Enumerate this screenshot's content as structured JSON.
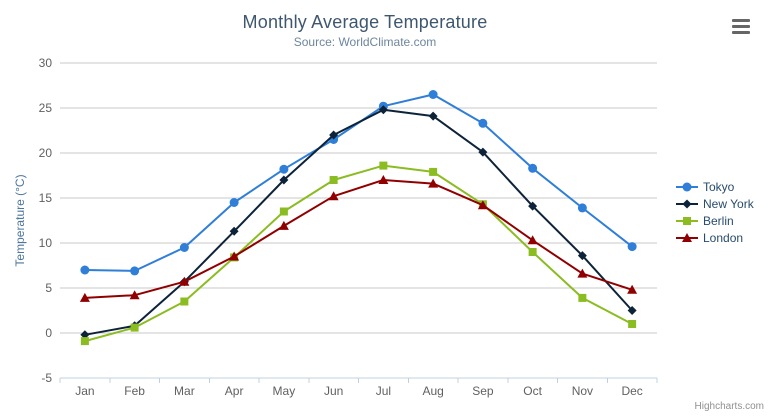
{
  "header": {
    "title": "Monthly Average Temperature",
    "subtitle": "Source: WorldClimate.com"
  },
  "credits": "Highcharts.com",
  "menu_icon": "hamburger-menu-icon",
  "colors": {
    "title": "#3e576f",
    "subtitle": "#6d869f",
    "grid": "#c9c9c9",
    "axis_line": "#c0d0e0",
    "tick_label": "#606060",
    "axis_title": "#4d759e",
    "legend_text": "#274b6d",
    "credits": "#909090",
    "menu": "#666666"
  },
  "chart_data": {
    "type": "line",
    "title": "Monthly Average Temperature",
    "subtitle": "Source: WorldClimate.com",
    "xlabel": "",
    "ylabel": "Temperature (°C)",
    "ylim": [
      -5,
      30
    ],
    "yticks": [
      30,
      25,
      20,
      15,
      10,
      5,
      0,
      -5
    ],
    "grid": true,
    "legend_position": "right",
    "categories": [
      "Jan",
      "Feb",
      "Mar",
      "Apr",
      "May",
      "Jun",
      "Jul",
      "Aug",
      "Sep",
      "Oct",
      "Nov",
      "Dec"
    ],
    "series": [
      {
        "name": "Tokyo",
        "color": "#2f7ed8",
        "marker": "circle",
        "values": [
          7.0,
          6.9,
          9.5,
          14.5,
          18.2,
          21.5,
          25.2,
          26.5,
          23.3,
          18.3,
          13.9,
          9.6
        ]
      },
      {
        "name": "New York",
        "color": "#0d233a",
        "marker": "diamond",
        "values": [
          -0.2,
          0.8,
          5.7,
          11.3,
          17.0,
          22.0,
          24.8,
          24.1,
          20.1,
          14.1,
          8.6,
          2.5
        ]
      },
      {
        "name": "Berlin",
        "color": "#8bbc21",
        "marker": "square",
        "values": [
          -0.9,
          0.6,
          3.5,
          8.4,
          13.5,
          17.0,
          18.6,
          17.9,
          14.3,
          9.0,
          3.9,
          1.0
        ]
      },
      {
        "name": "London",
        "color": "#910000",
        "marker": "triangle",
        "values": [
          3.9,
          4.2,
          5.7,
          8.5,
          11.9,
          15.2,
          17.0,
          16.6,
          14.2,
          10.3,
          6.6,
          4.8
        ]
      }
    ]
  }
}
